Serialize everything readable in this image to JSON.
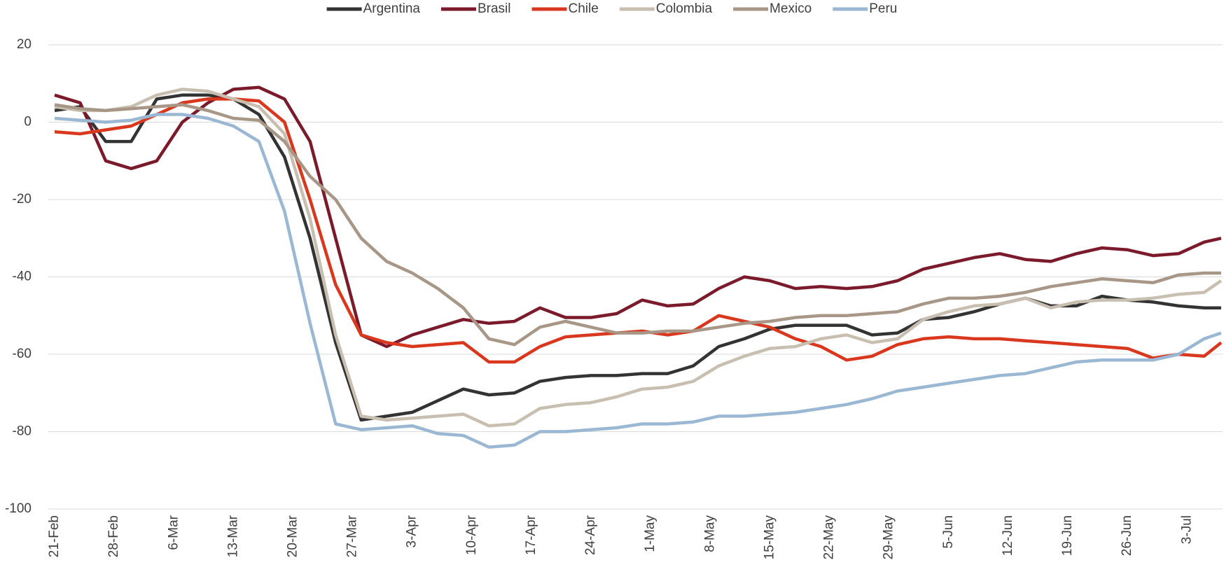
{
  "chart_data": {
    "type": "line",
    "x": [
      "21-Feb",
      "24-Feb",
      "27-Feb",
      "1-Mar",
      "4-Mar",
      "7-Mar",
      "10-Mar",
      "13-Mar",
      "16-Mar",
      "19-Mar",
      "22-Mar",
      "25-Mar",
      "28-Mar",
      "31-Mar",
      "3-Apr",
      "6-Apr",
      "9-Apr",
      "12-Apr",
      "15-Apr",
      "18-Apr",
      "21-Apr",
      "24-Apr",
      "27-Apr",
      "30-Apr",
      "3-May",
      "6-May",
      "9-May",
      "12-May",
      "15-May",
      "18-May",
      "21-May",
      "24-May",
      "27-May",
      "30-May",
      "2-Jun",
      "5-Jun",
      "8-Jun",
      "11-Jun",
      "14-Jun",
      "17-Jun",
      "20-Jun",
      "23-Jun",
      "26-Jun",
      "29-Jun",
      "2-Jul",
      "5-Jul",
      "7-Jul"
    ],
    "series": [
      {
        "name": "Argentina",
        "color": "#333333",
        "values": [
          3,
          4,
          -5,
          -5,
          6,
          7,
          7,
          6,
          2,
          -9,
          -30,
          -57,
          -77,
          -76,
          -75,
          -72,
          -69,
          -70.5,
          -70,
          -67,
          -66,
          -65.5,
          -65.5,
          -65,
          -65,
          -63,
          -58,
          -56,
          -53.5,
          -52.5,
          -52.5,
          -52.5,
          -55,
          -54.5,
          -51,
          -50.5,
          -49,
          -47,
          -45.5,
          -47.5,
          -47.5,
          -45,
          -46,
          -46.5,
          -47.5,
          -48,
          -48
        ]
      },
      {
        "name": "Brasil",
        "color": "#7b1a2a",
        "values": [
          7,
          5,
          -10,
          -12,
          -10,
          0,
          5,
          8.5,
          9,
          6,
          -5,
          -30,
          -55,
          -58,
          -55,
          -53,
          -51,
          -52,
          -51.5,
          -48,
          -50.5,
          -50.5,
          -49.5,
          -46,
          -47.5,
          -47,
          -43,
          -40,
          -41,
          -43,
          -42.5,
          -43,
          -42.5,
          -41,
          -38,
          -36.5,
          -35,
          -34,
          -35.5,
          -36,
          -34,
          -32.5,
          -33,
          -34.5,
          -34,
          -31,
          -30
        ]
      },
      {
        "name": "Chile",
        "color": "#d9381e",
        "values": [
          -2.5,
          -3,
          -2,
          -1,
          2,
          5,
          6,
          6,
          5.5,
          0,
          -20,
          -42,
          -55,
          -57,
          -58,
          -57.5,
          -57,
          -62,
          -62,
          -58,
          -55.5,
          -55,
          -54.5,
          -54,
          -55,
          -54,
          -50,
          -51.5,
          -53,
          -56,
          -58,
          -61.5,
          -60.5,
          -57.5,
          -56,
          -55.5,
          -56,
          -56,
          -56.5,
          -57,
          -57.5,
          -58,
          -58.5,
          -61,
          -60,
          -60.5,
          -57
        ]
      },
      {
        "name": "Colombia",
        "color": "#c8bfb0",
        "values": [
          4,
          3,
          3,
          4,
          7,
          8.5,
          8,
          6,
          4,
          -3,
          -25,
          -55,
          -76,
          -77,
          -76.5,
          -76,
          -75.5,
          -78.5,
          -78,
          -74,
          -73,
          -72.5,
          -71,
          -69,
          -68.5,
          -67,
          -63,
          -60.5,
          -58.5,
          -58,
          -56,
          -55,
          -57,
          -56,
          -51,
          -49,
          -47.5,
          -47,
          -45.5,
          -48,
          -46.5,
          -46,
          -46,
          -45.5,
          -44.5,
          -44,
          -41
        ]
      },
      {
        "name": "Mexico",
        "color": "#a89786",
        "values": [
          4.5,
          3.5,
          3,
          3.5,
          4,
          4.5,
          3,
          1,
          0.5,
          -5,
          -14,
          -20,
          -30,
          -36,
          -39,
          -43,
          -48,
          -56,
          -57.5,
          -53,
          -51.5,
          -53,
          -54.5,
          -54.5,
          -54,
          -54,
          -53,
          -52,
          -51.5,
          -50.5,
          -50,
          -50,
          -49.5,
          -49,
          -47,
          -45.5,
          -45.5,
          -45,
          -44,
          -42.5,
          -41.5,
          -40.5,
          -41,
          -41.5,
          -39.5,
          -39,
          -39
        ]
      },
      {
        "name": "Peru",
        "color": "#9ab8d3",
        "values": [
          1,
          0.5,
          0,
          0.5,
          2,
          2,
          1,
          -1,
          -5,
          -23,
          -52,
          -78,
          -79.5,
          -79,
          -78.5,
          -80.5,
          -81,
          -84,
          -83.5,
          -80,
          -80,
          -79.5,
          -79,
          -78,
          -78,
          -77.5,
          -76,
          -76,
          -75.5,
          -75,
          -74,
          -73,
          -71.5,
          -69.5,
          -68.5,
          -67.5,
          -66.5,
          -65.5,
          -65,
          -63.5,
          -62,
          -61.5,
          -61.5,
          -61.5,
          -60,
          -56,
          -54.5
        ]
      }
    ],
    "xticks": [
      "21-Feb",
      "28-Feb",
      "6-Mar",
      "13-Mar",
      "20-Mar",
      "27-Mar",
      "3-Apr",
      "10-Apr",
      "17-Apr",
      "24-Apr",
      "1-May",
      "8-May",
      "15-May",
      "22-May",
      "29-May",
      "5-Jun",
      "12-Jun",
      "19-Jun",
      "26-Jun",
      "3-Jul"
    ],
    "ylim": [
      -100,
      20
    ],
    "yticks": [
      -100,
      -80,
      -60,
      -40,
      -20,
      0,
      20
    ],
    "grid": true,
    "legend": "top"
  }
}
